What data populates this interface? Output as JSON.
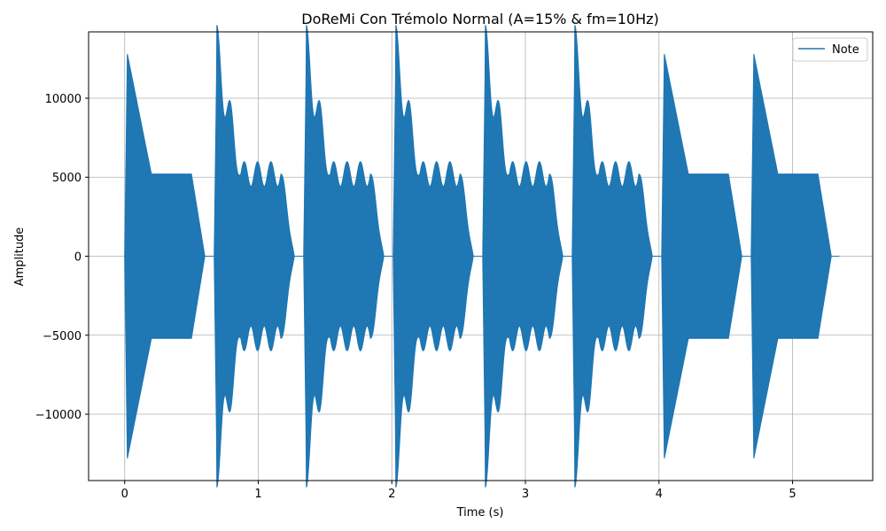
{
  "chart_data": {
    "type": "line",
    "title": "DoReMi Con Trémolo Normal (A=15% & fm=10Hz)",
    "xlabel": "Time (s)",
    "ylabel": "Amplitude",
    "xlim": [
      -0.27,
      5.6
    ],
    "ylim": [
      -14200,
      14200
    ],
    "xticks": [
      0,
      1,
      2,
      3,
      4,
      5
    ],
    "xtick_labels": [
      "0",
      "1",
      "2",
      "3",
      "4",
      "5"
    ],
    "yticks": [
      -10000,
      -5000,
      0,
      5000,
      10000
    ],
    "ytick_labels": [
      "−10000",
      "−5000",
      "0",
      "5000",
      "10000"
    ],
    "grid": true,
    "legend": {
      "position": "top-right",
      "entries": [
        "Note"
      ]
    },
    "series": [
      {
        "name": "Note",
        "color": "#1f77b4",
        "note_onsets": [
          0.0,
          0.67,
          1.34,
          2.01,
          2.68,
          3.35,
          4.02,
          4.69
        ],
        "note_duration": 0.6,
        "peak_amplitude": 12800,
        "sustain_amplitude": 5200,
        "tremolo_depth": 0.15,
        "tremolo_frequency_hz": 10,
        "tremolo_notes": [
          false,
          true,
          true,
          true,
          true,
          true,
          false,
          false
        ],
        "attack_s": 0.02,
        "decay_s": 0.18,
        "release_s": 0.1,
        "end_time": 5.35
      }
    ]
  }
}
